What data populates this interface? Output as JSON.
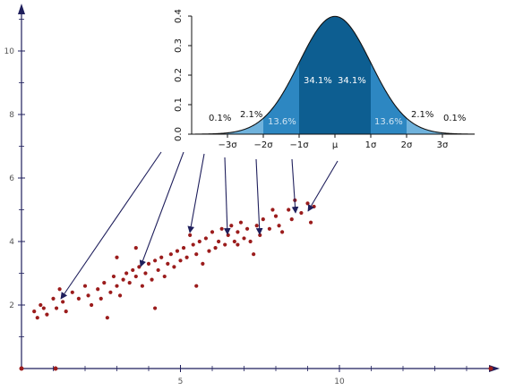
{
  "scatter": {
    "x_ticks": [
      "5",
      "10"
    ],
    "y_ticks": [
      "2",
      "4",
      "6",
      "8",
      "10"
    ],
    "point_color": "#9b1c1c"
  },
  "inset": {
    "y_ticks": [
      "0.0",
      "0.1",
      "0.2",
      "0.3",
      "0.4"
    ],
    "x_labels": [
      "−3σ",
      "−2σ",
      "−1σ",
      "μ",
      "1σ",
      "2σ",
      "3σ"
    ],
    "percent_labels": {
      "tail_left": "0.1%",
      "band2_left": "2.1%",
      "band1_left": "13.6%",
      "center_left": "34.1%",
      "center_right": "34.1%",
      "band1_right": "13.6%",
      "band2_right": "2.1%",
      "tail_right": "0.1%"
    },
    "colors": {
      "center": "#0d5e91",
      "band1": "#2d87c2",
      "band2": "#6fb2dc",
      "tail": "#a8d0ec"
    }
  },
  "chart_data": {
    "type": "scatter",
    "xlim": [
      0,
      15
    ],
    "ylim": [
      0,
      11
    ],
    "series": [
      {
        "values": [
          [
            0.4,
            1.8
          ],
          [
            0.5,
            1.6
          ],
          [
            0.6,
            2.0
          ],
          [
            0.7,
            1.9
          ],
          [
            0.8,
            1.7
          ],
          [
            1.0,
            2.2
          ],
          [
            1.1,
            1.9
          ],
          [
            1.3,
            2.1
          ],
          [
            1.4,
            1.8
          ],
          [
            1.6,
            2.4
          ],
          [
            1.8,
            2.2
          ],
          [
            2.0,
            2.6
          ],
          [
            2.1,
            2.3
          ],
          [
            2.2,
            2.0
          ],
          [
            2.4,
            2.5
          ],
          [
            2.5,
            2.2
          ],
          [
            2.6,
            2.7
          ],
          [
            2.8,
            2.4
          ],
          [
            2.9,
            2.9
          ],
          [
            3.0,
            2.6
          ],
          [
            3.1,
            2.3
          ],
          [
            3.2,
            2.8
          ],
          [
            3.3,
            3.0
          ],
          [
            3.4,
            2.7
          ],
          [
            3.5,
            3.1
          ],
          [
            3.6,
            2.9
          ],
          [
            3.7,
            3.2
          ],
          [
            3.8,
            2.6
          ],
          [
            3.9,
            3.0
          ],
          [
            4.0,
            3.3
          ],
          [
            4.1,
            2.8
          ],
          [
            4.2,
            3.4
          ],
          [
            4.3,
            3.1
          ],
          [
            4.4,
            3.5
          ],
          [
            4.5,
            2.9
          ],
          [
            4.6,
            3.3
          ],
          [
            4.7,
            3.6
          ],
          [
            4.8,
            3.2
          ],
          [
            4.9,
            3.7
          ],
          [
            5.0,
            3.4
          ],
          [
            5.1,
            3.8
          ],
          [
            5.2,
            3.5
          ],
          [
            5.3,
            4.2
          ],
          [
            5.4,
            3.9
          ],
          [
            5.5,
            3.6
          ],
          [
            5.6,
            4.0
          ],
          [
            5.7,
            3.3
          ],
          [
            5.8,
            4.1
          ],
          [
            5.9,
            3.7
          ],
          [
            6.0,
            4.3
          ],
          [
            6.1,
            3.8
          ],
          [
            6.2,
            4.0
          ],
          [
            6.3,
            4.4
          ],
          [
            6.4,
            3.9
          ],
          [
            6.5,
            4.2
          ],
          [
            6.6,
            4.5
          ],
          [
            6.7,
            4.0
          ],
          [
            6.8,
            4.3
          ],
          [
            6.9,
            4.6
          ],
          [
            7.0,
            4.1
          ],
          [
            7.1,
            4.4
          ],
          [
            7.2,
            4.0
          ],
          [
            7.3,
            3.6
          ],
          [
            7.4,
            4.5
          ],
          [
            7.5,
            4.2
          ],
          [
            7.6,
            4.7
          ],
          [
            7.8,
            4.4
          ],
          [
            8.0,
            4.8
          ],
          [
            8.1,
            4.5
          ],
          [
            8.2,
            4.3
          ],
          [
            8.4,
            5.0
          ],
          [
            8.5,
            4.7
          ],
          [
            8.6,
            5.3
          ],
          [
            8.8,
            4.9
          ],
          [
            9.0,
            5.2
          ],
          [
            9.1,
            4.6
          ],
          [
            9.2,
            5.1
          ],
          [
            1.2,
            2.5
          ],
          [
            2.7,
            1.6
          ],
          [
            3.6,
            3.8
          ],
          [
            4.2,
            1.9
          ],
          [
            5.5,
            2.6
          ],
          [
            3.0,
            3.5
          ],
          [
            6.8,
            3.9
          ],
          [
            7.9,
            5.0
          ]
        ]
      }
    ]
  }
}
